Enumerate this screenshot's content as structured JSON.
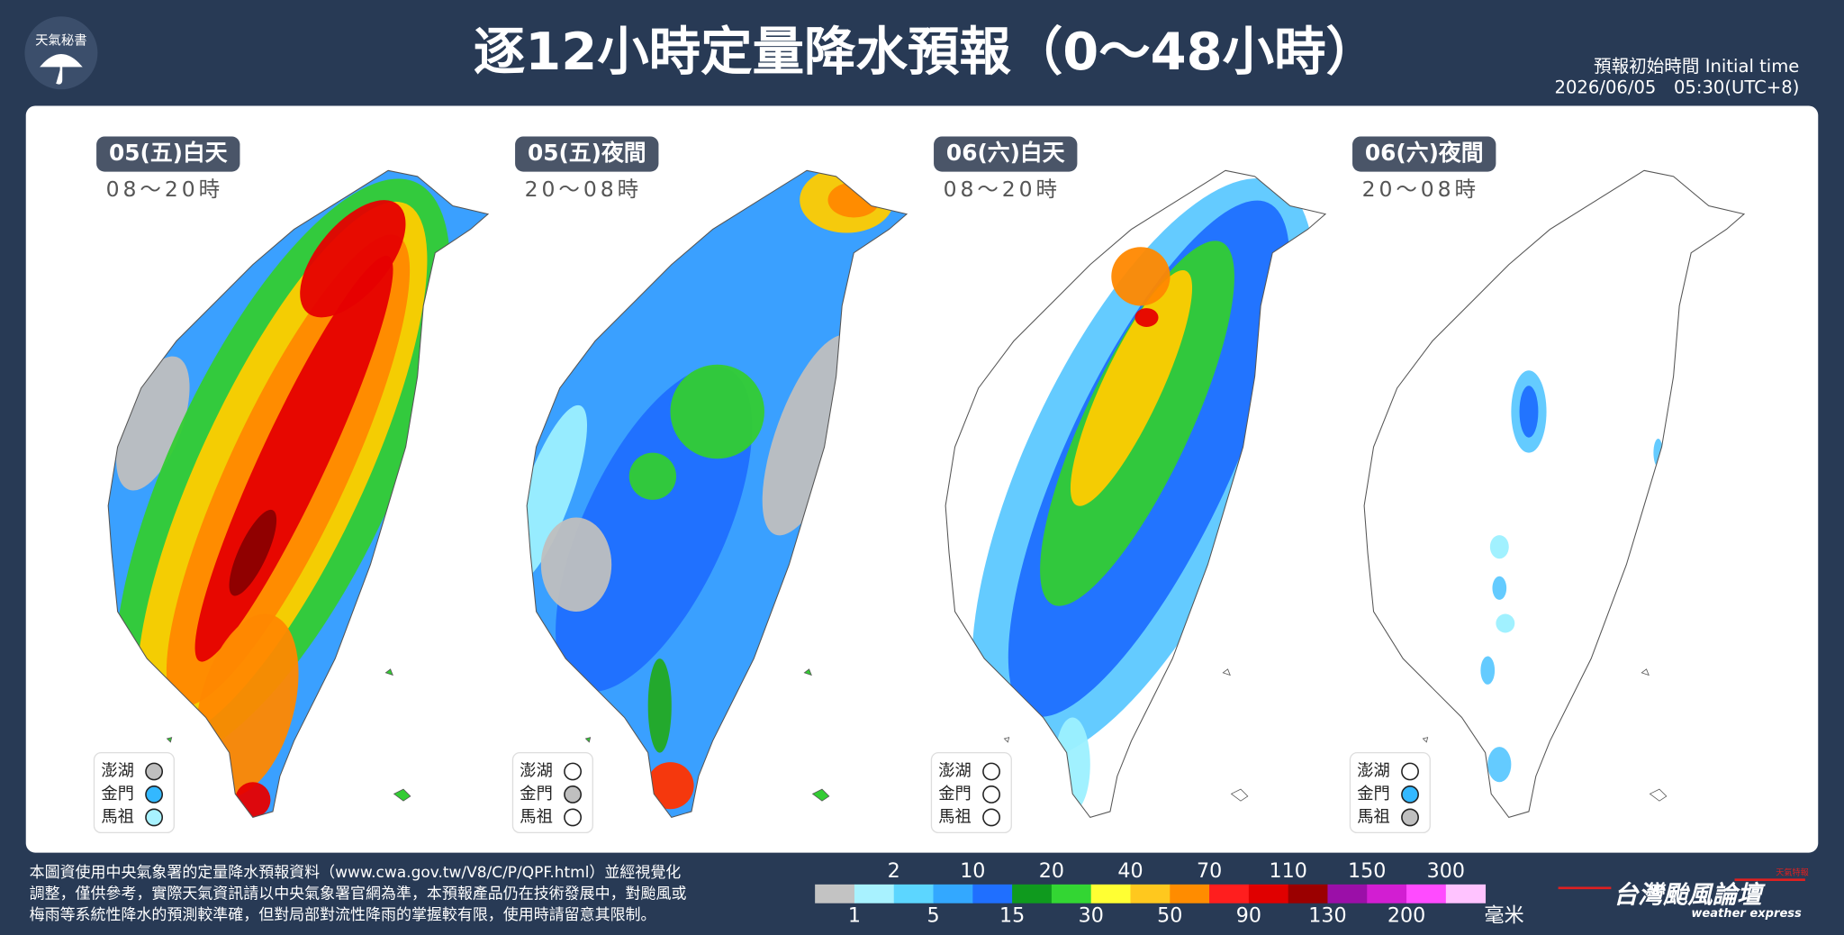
{
  "header": {
    "logo": "天氣秘書",
    "title": "逐12小時定量降水預報（0～48小時）",
    "initial_time_label": "預報初始時間 Initial time",
    "initial_time": "2026/06/05　05:30(UTC+8)"
  },
  "islands": {
    "names": [
      "澎湖",
      "金門",
      "馬祖"
    ]
  },
  "panels": [
    {
      "label": "05(五)白天",
      "time": "08～20時",
      "island_colors": [
        "#bfbfbf",
        "#33b8ff",
        "#a8f2ff"
      ]
    },
    {
      "label": "05(五)夜間",
      "time": "20～08時",
      "island_colors": [
        "#ffffff",
        "#bfbfbf",
        "#ffffff"
      ]
    },
    {
      "label": "06(六)白天",
      "time": "08～20時",
      "island_colors": [
        "#ffffff",
        "#ffffff",
        "#ffffff"
      ]
    },
    {
      "label": "06(六)夜間",
      "time": "20～08時",
      "island_colors": [
        "#ffffff",
        "#33b8ff",
        "#bfbfbf"
      ]
    }
  ],
  "legend": {
    "edges": [
      1,
      2,
      5,
      10,
      15,
      20,
      30,
      40,
      50,
      70,
      90,
      110,
      130,
      150,
      200,
      300
    ],
    "colors": [
      "#c3c3c3",
      "#a8f2ff",
      "#5cd6ff",
      "#33a8ff",
      "#1f6fff",
      "#0f9a1e",
      "#33d633",
      "#ffff33",
      "#ffc81e",
      "#ff8c00",
      "#ff1e1e",
      "#e00000",
      "#9b0000",
      "#9b0fa8",
      "#d21ed2",
      "#ff4bff",
      "#ffc3ff"
    ],
    "unit": "毫米"
  },
  "footer": {
    "note": [
      "本圖資使用中央氣象署的定量降水預報資料（www.cwa.gov.tw/V8/C/P/QPF.html）並經視覺化",
      "調整，僅供參考，實際天氣資訊請以中央氣象署官網為準，本預報產品仍在技術發展中，對颱風或",
      "梅雨等系統性降水的預測較準確，但對局部對流性降雨的掌握較有限，使用時請留意其限制。"
    ],
    "brand": "台灣颱風論壇",
    "brand_sub": "weather express",
    "brand_tag": "天氣特報"
  }
}
